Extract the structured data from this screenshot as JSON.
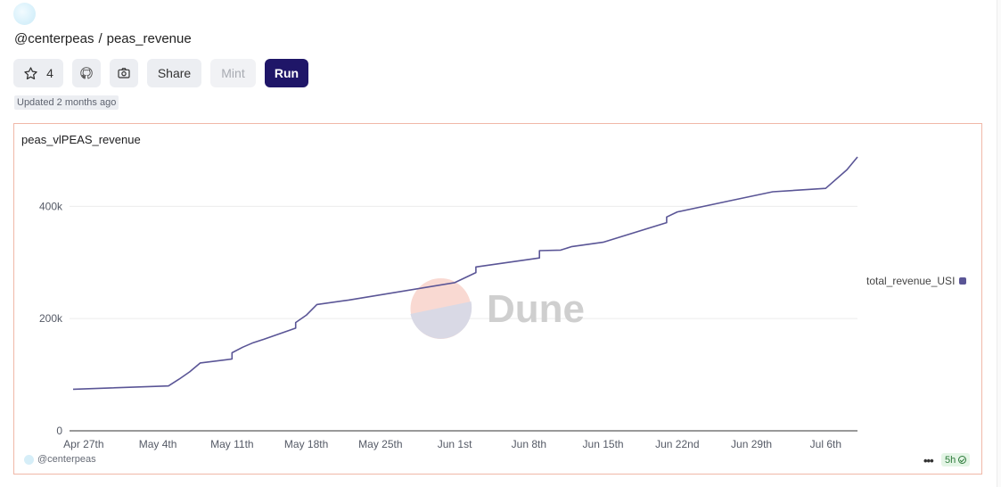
{
  "header": {
    "owner": "@centerpeas",
    "separator": "/",
    "query_name": "peas_revenue"
  },
  "toolbar": {
    "star_count": "4",
    "share_label": "Share",
    "mint_label": "Mint",
    "run_label": "Run",
    "icons": [
      "star-icon",
      "github-icon",
      "camera-icon"
    ]
  },
  "updated": {
    "label": "Updated",
    "value": "2 months ago"
  },
  "chart": {
    "title": "peas_vlPEAS_revenue",
    "legend_label": "total_revenue_USI",
    "watermark": "Dune",
    "footer_author": "@centerpeas",
    "more_label": "•••",
    "age_badge": "5h"
  },
  "colors": {
    "line": "#5a5596",
    "run_button": "#1f1668",
    "card_border": "#f0b8a8"
  },
  "chart_data": {
    "type": "line",
    "title": "peas_vlPEAS_revenue",
    "xlabel": "",
    "ylabel": "",
    "x_ticks": [
      "Apr 27th",
      "May 4th",
      "May 11th",
      "May 18th",
      "May 25th",
      "Jun 1st",
      "Jun 8th",
      "Jun 15th",
      "Jun 22nd",
      "Jun 29th",
      "Jul 6th"
    ],
    "y_ticks": [
      "0",
      "200k",
      "400k"
    ],
    "ylim": [
      0,
      480000
    ],
    "legend": "right",
    "grid": true,
    "series": [
      {
        "name": "total_revenue_USI",
        "x": [
          "2024-04-26",
          "2024-05-05",
          "2024-05-06",
          "2024-05-07",
          "2024-05-08",
          "2024-05-11",
          "2024-05-11",
          "2024-05-12",
          "2024-05-13",
          "2024-05-14",
          "2024-05-17",
          "2024-05-17",
          "2024-05-18",
          "2024-05-19",
          "2024-05-22",
          "2024-06-01",
          "2024-06-03",
          "2024-06-03",
          "2024-06-09",
          "2024-06-09",
          "2024-06-11",
          "2024-06-12",
          "2024-06-15",
          "2024-06-21",
          "2024-06-21",
          "2024-06-22",
          "2024-06-27",
          "2024-07-01",
          "2024-07-06",
          "2024-07-08",
          "2024-07-09"
        ],
        "y": [
          74000,
          80000,
          92000,
          105000,
          121000,
          128000,
          139000,
          149000,
          157000,
          163000,
          183000,
          193000,
          206000,
          225000,
          233000,
          264000,
          282000,
          292000,
          308000,
          321000,
          322000,
          328000,
          336000,
          371000,
          381000,
          390000,
          410000,
          426000,
          432000,
          465000,
          488000
        ]
      }
    ]
  }
}
